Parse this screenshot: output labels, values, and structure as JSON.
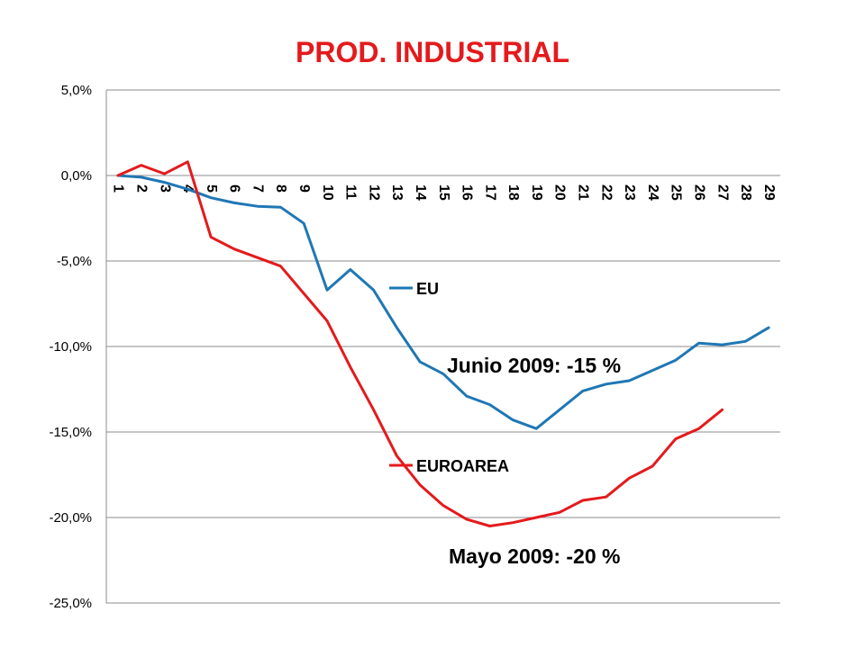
{
  "chart_data": {
    "type": "line",
    "title": "PROD. INDUSTRIAL",
    "x": [
      1,
      2,
      3,
      4,
      5,
      6,
      7,
      8,
      9,
      10,
      11,
      12,
      13,
      14,
      15,
      16,
      17,
      18,
      19,
      20,
      21,
      22,
      23,
      24,
      25,
      26,
      27,
      28,
      29
    ],
    "x_tick_labels": [
      "1",
      "2",
      "3",
      "4",
      "5",
      "6",
      "7",
      "8",
      "9",
      "10",
      "11",
      "12",
      "13",
      "14",
      "15",
      "16",
      "17",
      "18",
      "19",
      "20",
      "21",
      "22",
      "23",
      "24",
      "25",
      "26",
      "27",
      "28",
      "29"
    ],
    "ylim": [
      -25,
      5
    ],
    "y_ticks": [
      5,
      0,
      -5,
      -10,
      -15,
      -20,
      -25
    ],
    "y_tick_labels": [
      "5,0%",
      "0,0%",
      "-5,0%",
      "-10,0%",
      "-15,0%",
      "-20,0%",
      "-25,0%"
    ],
    "grid": true,
    "series": [
      {
        "name": "EU",
        "color": "#1f77b4",
        "values": [
          0.0,
          -0.1,
          -0.4,
          -0.8,
          -1.3,
          -1.6,
          -1.8,
          -1.85,
          -2.8,
          -6.7,
          -5.5,
          -6.7,
          -8.9,
          -10.9,
          -11.6,
          -12.9,
          -13.4,
          -14.3,
          -14.8,
          -13.7,
          -12.6,
          -12.2,
          -12.0,
          -11.4,
          -10.8,
          -9.8,
          -9.9,
          -9.7,
          -8.9
        ]
      },
      {
        "name": "EUROAREA",
        "color": "#e41a1c",
        "values": [
          0.0,
          0.6,
          0.1,
          0.8,
          -3.6,
          -4.3,
          -4.8,
          -5.3,
          -6.9,
          -8.5,
          -11.2,
          -13.7,
          -16.4,
          -18.1,
          -19.3,
          -20.1,
          -20.5,
          -20.3,
          -20.0,
          -19.7,
          -19.0,
          -18.8,
          -17.7,
          -17.0,
          -15.4,
          -14.8,
          -13.7,
          null,
          null
        ]
      }
    ],
    "legend_placement": "inside-center",
    "annotations": [
      "Junio 2009: -15 %",
      "Mayo 2009: -20 %"
    ]
  }
}
